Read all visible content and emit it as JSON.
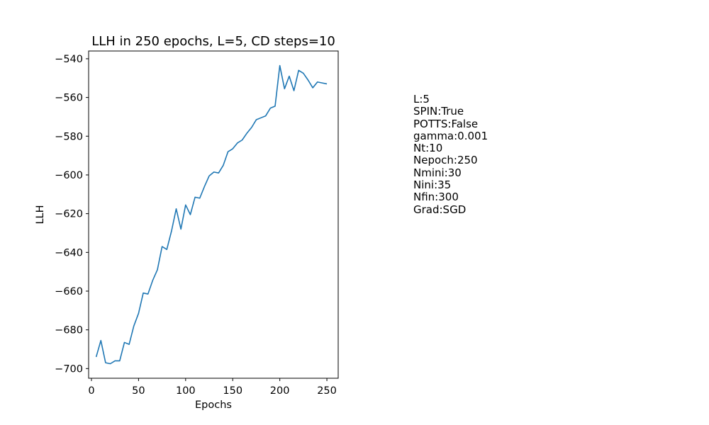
{
  "chart_data": {
    "type": "line",
    "title": "LLH in 250 epochs, L=5, CD steps=10",
    "xlabel": "Epochs",
    "ylabel": "LLH",
    "xlim": [
      -3,
      262
    ],
    "ylim": [
      -705,
      -536
    ],
    "xticks": [
      0,
      50,
      100,
      150,
      200,
      250
    ],
    "yticks": [
      -700,
      -680,
      -660,
      -640,
      -620,
      -600,
      -580,
      -560,
      -540
    ],
    "grid": false,
    "line_color": "#1f77b4",
    "series": [
      {
        "x": [
          5,
          10,
          15,
          20,
          25,
          30,
          35,
          40,
          45,
          50,
          55,
          60,
          65,
          70,
          75,
          80,
          85,
          90,
          95,
          100,
          105,
          110,
          115,
          120,
          125,
          130,
          135,
          140,
          145,
          150,
          155,
          160,
          165,
          170,
          175,
          180,
          185,
          190,
          195,
          200,
          205,
          210,
          215,
          220,
          225,
          230,
          235,
          240,
          245,
          250
        ],
        "values": [
          -694,
          -685.5,
          -697,
          -697.5,
          -696,
          -696,
          -686.5,
          -687.5,
          -678,
          -671.5,
          -661,
          -661.5,
          -654.5,
          -649,
          -637,
          -638.5,
          -629,
          -617.5,
          -628,
          -615.5,
          -620.5,
          -611.5,
          -612,
          -606,
          -600.5,
          -598.5,
          -599,
          -595,
          -588,
          -586.5,
          -583.5,
          -582,
          -578.5,
          -575.5,
          -571.5,
          -570.5,
          -569.5,
          -565.5,
          -564.5,
          -543.5,
          -555.5,
          -549,
          -556.5,
          -546,
          -547.5,
          -551,
          -555,
          -552,
          -552.5,
          -553
        ]
      }
    ]
  },
  "side_panel": {
    "lines": [
      "L:5",
      "SPIN:True",
      "POTTS:False",
      "gamma:0.001",
      "Nt:10",
      "Nepoch:250",
      "Nmini:30",
      "Nini:35",
      "Nfin:300",
      "Grad:SGD"
    ]
  }
}
